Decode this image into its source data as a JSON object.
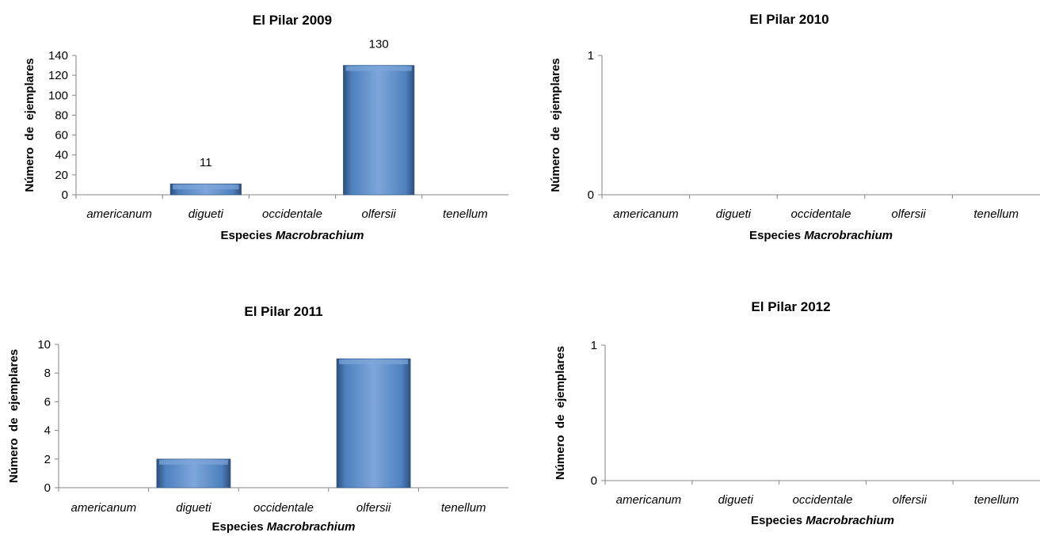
{
  "chart_data": [
    {
      "type": "bar",
      "title": "El Pilar 2009",
      "xlabel_prefix": "Especies",
      "xlabel_italic": "Macrobrachium",
      "ylabel": "Número  de  ejemplares",
      "categories": [
        "americanum",
        "digueti",
        "occidentale",
        "olfersii",
        "tenellum"
      ],
      "values": [
        0,
        11,
        0,
        130,
        0
      ],
      "data_labels": [
        "",
        "11",
        "",
        "130",
        ""
      ],
      "yticks": [
        "0",
        "20",
        "40",
        "60",
        "80",
        "100",
        "120",
        "140"
      ],
      "ylim": [
        0,
        140
      ]
    },
    {
      "type": "bar",
      "title": "El Pilar 2010",
      "xlabel_prefix": "Especies",
      "xlabel_italic": "Macrobrachium",
      "ylabel": "Número  de  ejemplares",
      "categories": [
        "americanum",
        "digueti",
        "occidentale",
        "olfersii",
        "tenellum"
      ],
      "values": [
        0,
        0,
        0,
        0,
        0
      ],
      "data_labels": [
        "",
        "",
        "",
        "",
        ""
      ],
      "yticks": [
        "0",
        "1"
      ],
      "ylim": [
        0,
        1
      ]
    },
    {
      "type": "bar",
      "title": "El Pilar 2011",
      "xlabel_prefix": "Especies",
      "xlabel_italic": "Macrobrachium",
      "ylabel": "Número  de  ejemplares",
      "categories": [
        "americanum",
        "digueti",
        "occidentale",
        "olfersii",
        "tenellum"
      ],
      "values": [
        0,
        2,
        0,
        9,
        0
      ],
      "data_labels": [
        "",
        "",
        "",
        "",
        ""
      ],
      "yticks": [
        "0",
        "2",
        "4",
        "6",
        "8",
        "10"
      ],
      "ylim": [
        0,
        10
      ]
    },
    {
      "type": "bar",
      "title": "El Pilar 2012",
      "xlabel_prefix": "Especies",
      "xlabel_italic": "Macrobrachium",
      "ylabel": "Número  de  ejemplares",
      "categories": [
        "americanum",
        "digueti",
        "occidentale",
        "olfersii",
        "tenellum"
      ],
      "values": [
        0,
        0,
        0,
        0,
        0
      ],
      "data_labels": [
        "",
        "",
        "",
        "",
        ""
      ],
      "yticks": [
        "0",
        "1"
      ],
      "ylim": [
        0,
        1
      ]
    }
  ],
  "colors": {
    "bar": "#4f81bd",
    "bar_light": "#7ea6dc",
    "bar_dark": "#2c4f7f"
  }
}
